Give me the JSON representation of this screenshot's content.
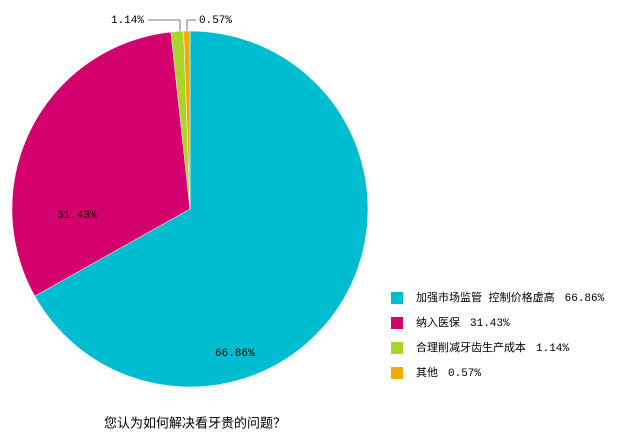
{
  "chart_data": {
    "type": "pie",
    "title": "您认为如何解决看牙贵的问题？",
    "categories": [
      "加强市场监管 控制价格虚高",
      "纳入医保",
      "合理削减牙齿生产成本",
      "其他"
    ],
    "values": [
      66.86,
      31.43,
      1.14,
      0.57
    ],
    "value_labels": [
      "66.86%",
      "31.43%",
      "1.14%",
      "0.57%"
    ],
    "colors": [
      "#00bcd0",
      "#d4006e",
      "#a8d42c",
      "#f2a900"
    ]
  }
}
